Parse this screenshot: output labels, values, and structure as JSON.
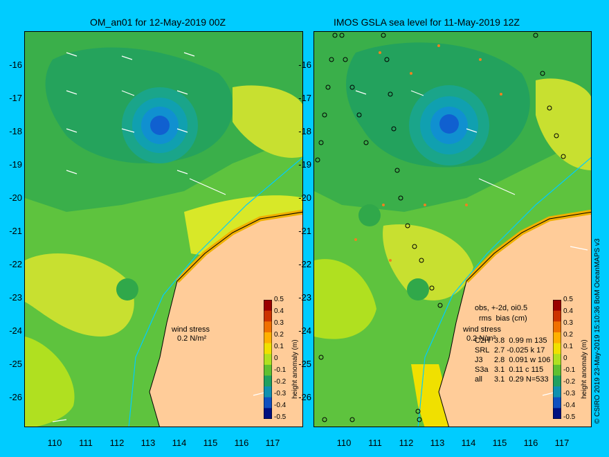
{
  "left_panel": {
    "title": "OM_an01 for 12-May-2019 00Z",
    "wind_label": "wind stress",
    "wind_scale": "0.2 N/m²"
  },
  "right_panel": {
    "title": "IMOS GSLA sea level  for 11-May-2019 12Z",
    "wind_label": "wind stress",
    "wind_scale": "0.2 N/m²",
    "obs_header": "obs, +-2d, oi0.5",
    "stats_header": "rms  bias (cm)",
    "stats": [
      {
        "sat": "C2H",
        "values": "3.8  0.99 m 135"
      },
      {
        "sat": "SRL",
        "values": "2.7 -0.025 k 17"
      },
      {
        "sat": "J3",
        "values": "2.8  0.091 w 106"
      },
      {
        "sat": "S3a",
        "values": "3.1  0.11 c 115"
      },
      {
        "sat": "all",
        "values": "3.1  0.29 N=533"
      }
    ]
  },
  "y_ticks": [
    "-16",
    "-17",
    "-18",
    "-19",
    "-20",
    "-21",
    "-22",
    "-23",
    "-24",
    "-25",
    "-26"
  ],
  "x_ticks": [
    "110",
    "111",
    "112",
    "113",
    "114",
    "115",
    "116",
    "117"
  ],
  "colorbar": {
    "title": "height anomaly (m)",
    "labels": [
      "0.5",
      "0.4",
      "0.3",
      "0.2",
      "0.1",
      "0",
      "-0.1",
      "-0.2",
      "-0.3",
      "-0.4",
      "-0.5"
    ],
    "colors": [
      "#9a0000",
      "#cc3300",
      "#f07000",
      "#ffb000",
      "#f0e000",
      "#b0e020",
      "#60c030",
      "#20a060",
      "#1090b0",
      "#1050c0",
      "#001080"
    ]
  },
  "credit": "© CSIRO 2019   23-May-2019 15:10:36 BoM OceanMAPS v3",
  "colors": {
    "background": "#00ccff",
    "land": "#ffcc99",
    "deep_green": "#20a060",
    "mid_green": "#5ec33e",
    "yellow_green": "#c0e030"
  }
}
